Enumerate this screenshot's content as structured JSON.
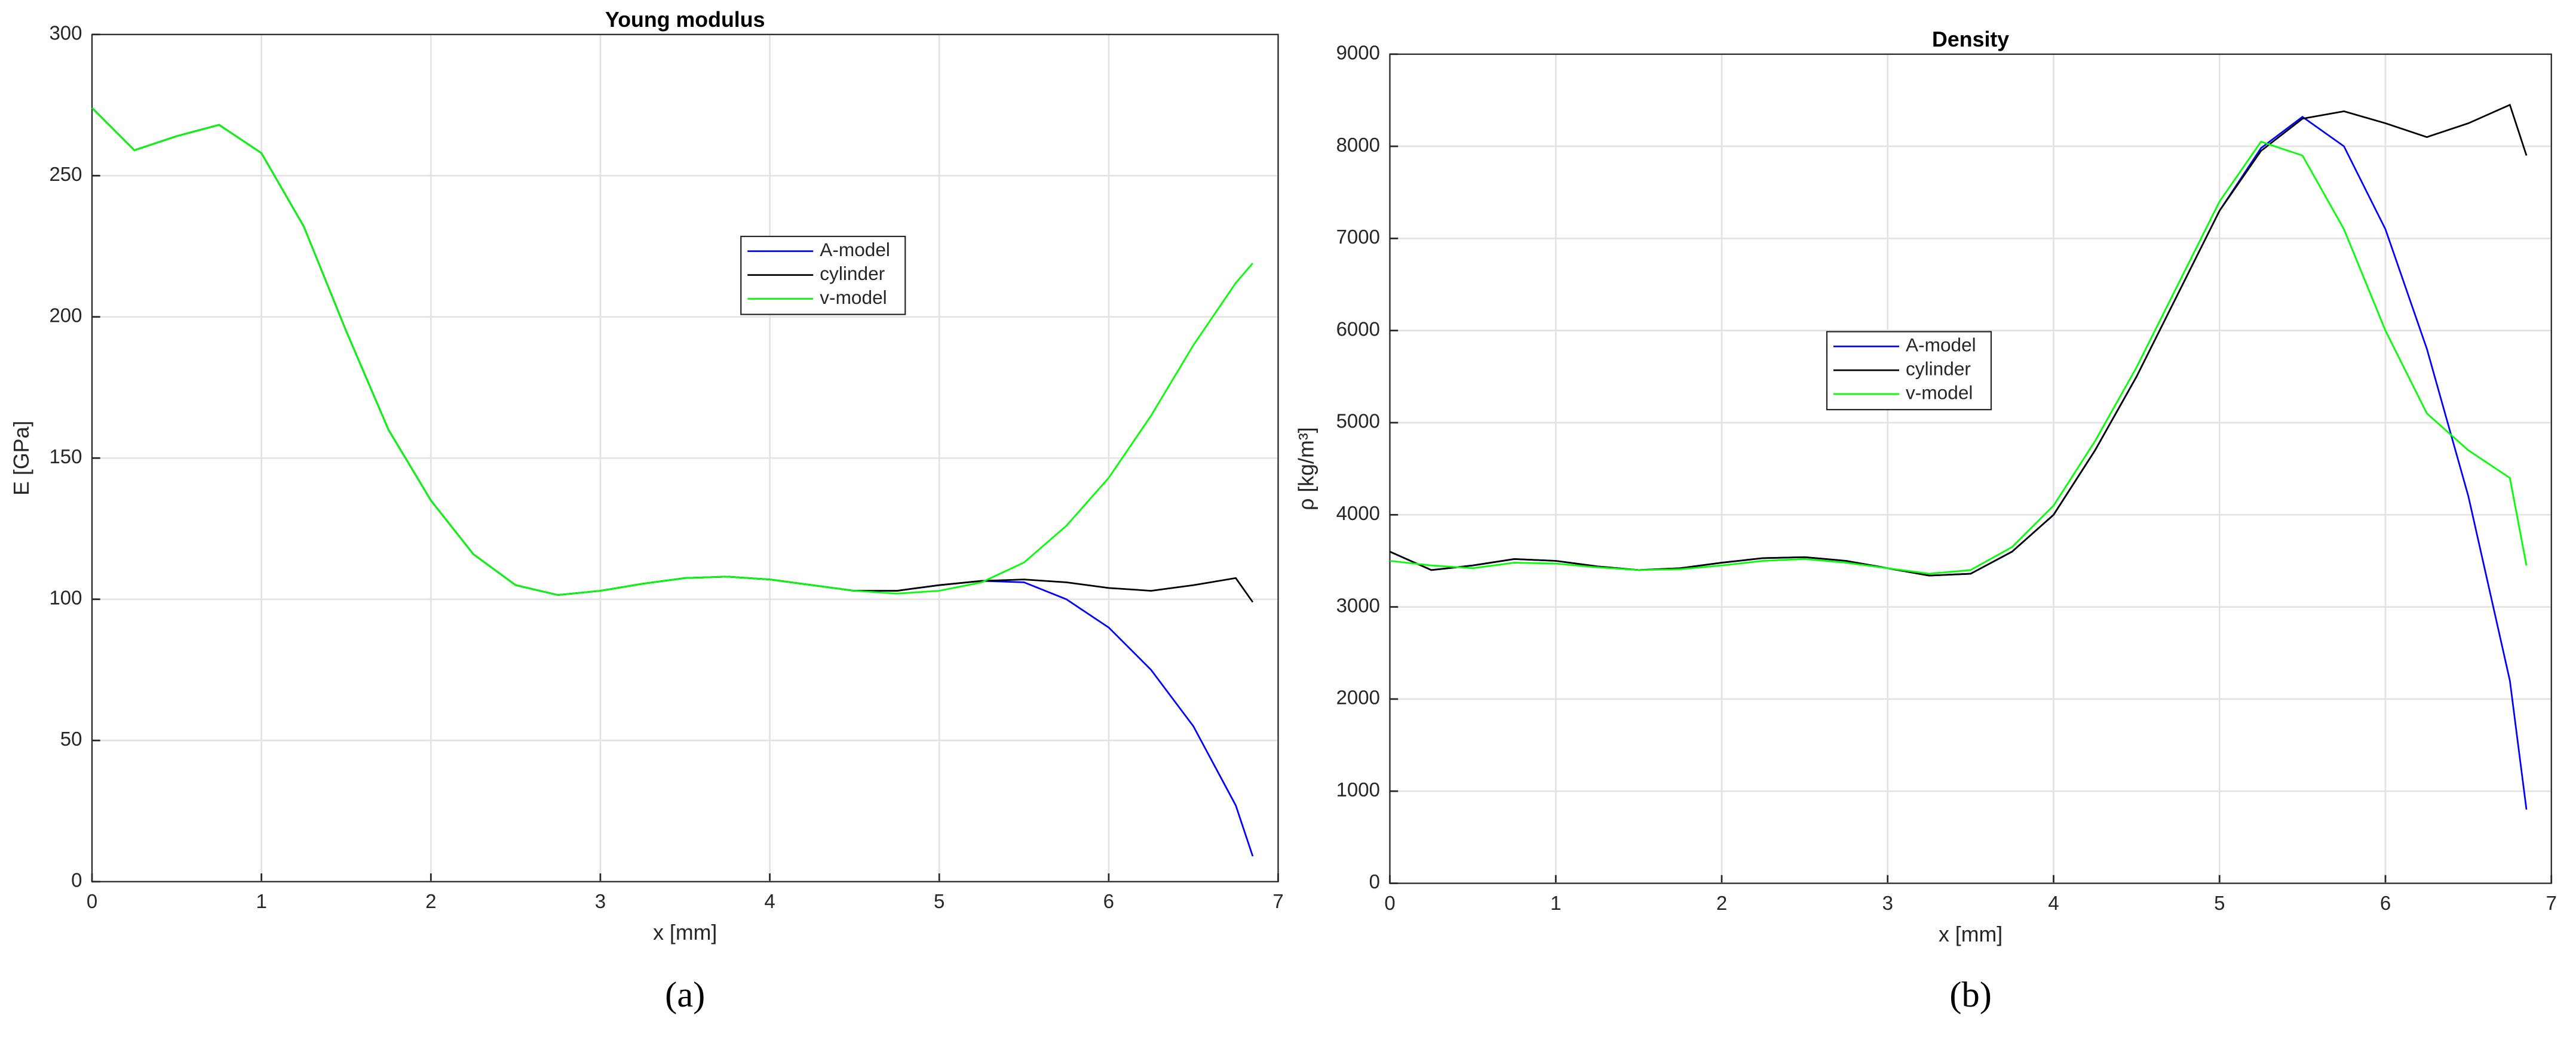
{
  "chart_data": [
    {
      "type": "line",
      "title": "Young modulus",
      "xlabel": "x [mm]",
      "ylabel": "E [GPa]",
      "caption": "(a)",
      "x": [
        0,
        0.25,
        0.5,
        0.75,
        1,
        1.25,
        1.5,
        1.75,
        2,
        2.25,
        2.5,
        2.75,
        3,
        3.25,
        3.5,
        3.75,
        4,
        4.25,
        4.5,
        4.75,
        5,
        5.25,
        5.5,
        5.75,
        6,
        6.25,
        6.5,
        6.75,
        6.85
      ],
      "series": [
        {
          "name": "A-model",
          "color": "#0000ff",
          "values": [
            274,
            259,
            264,
            268,
            258,
            232,
            195,
            160,
            135,
            116,
            105,
            101.5,
            103,
            105.5,
            107.5,
            108,
            107,
            105,
            103,
            103,
            105,
            106.5,
            106,
            100,
            90,
            75,
            55,
            27,
            9
          ]
        },
        {
          "name": "cylinder",
          "color": "#000000",
          "values": [
            274,
            259,
            264,
            268,
            258,
            232,
            195,
            160,
            135,
            116,
            105,
            101.5,
            103,
            105.5,
            107.5,
            108,
            107,
            105,
            103,
            103,
            105,
            106.5,
            107,
            106,
            104,
            103,
            105,
            107.5,
            99
          ]
        },
        {
          "name": "v-model",
          "color": "#00ff00",
          "values": [
            274,
            259,
            264,
            268,
            258,
            232,
            195,
            160,
            135,
            116,
            105,
            101.5,
            103,
            105.5,
            107.5,
            108,
            107,
            105,
            103,
            102,
            103,
            106,
            113,
            126,
            143,
            165,
            190,
            212,
            219
          ]
        }
      ],
      "xlim": [
        0,
        7
      ],
      "ylim": [
        0,
        300
      ],
      "xticks": [
        0,
        1,
        2,
        3,
        4,
        5,
        6,
        7
      ],
      "yticks": [
        0,
        50,
        100,
        150,
        200,
        250,
        300
      ],
      "grid": true
    },
    {
      "type": "line",
      "title": "Density",
      "xlabel": "x [mm]",
      "ylabel": "ρ [kg/m³]",
      "caption": "(b)",
      "x": [
        0,
        0.25,
        0.5,
        0.75,
        1,
        1.25,
        1.5,
        1.75,
        2,
        2.25,
        2.5,
        2.75,
        3,
        3.25,
        3.5,
        3.75,
        4,
        4.25,
        4.5,
        4.75,
        5,
        5.25,
        5.5,
        5.75,
        6,
        6.25,
        6.5,
        6.75,
        6.85
      ],
      "series": [
        {
          "name": "A-model",
          "color": "#0000ff",
          "values": [
            3600,
            3400,
            3450,
            3520,
            3500,
            3440,
            3400,
            3420,
            3480,
            3530,
            3540,
            3500,
            3420,
            3340,
            3360,
            3600,
            4000,
            4700,
            5500,
            6400,
            7300,
            7980,
            8320,
            8000,
            7100,
            5800,
            4200,
            2200,
            800
          ]
        },
        {
          "name": "cylinder",
          "color": "#000000",
          "values": [
            3600,
            3400,
            3450,
            3520,
            3500,
            3440,
            3400,
            3420,
            3480,
            3530,
            3540,
            3500,
            3420,
            3340,
            3360,
            3600,
            4000,
            4700,
            5500,
            6400,
            7300,
            7950,
            8300,
            8380,
            8250,
            8100,
            8250,
            8450,
            7900
          ]
        },
        {
          "name": "v-model",
          "color": "#00ff00",
          "values": [
            3500,
            3450,
            3420,
            3480,
            3470,
            3430,
            3400,
            3410,
            3450,
            3500,
            3520,
            3480,
            3420,
            3360,
            3400,
            3650,
            4100,
            4800,
            5600,
            6500,
            7400,
            8050,
            7900,
            7100,
            6000,
            5100,
            4700,
            4400,
            3450
          ]
        }
      ],
      "xlim": [
        0,
        7
      ],
      "ylim": [
        0,
        9000
      ],
      "xticks": [
        0,
        1,
        2,
        3,
        4,
        5,
        6,
        7
      ],
      "yticks": [
        0,
        1000,
        2000,
        3000,
        4000,
        5000,
        6000,
        7000,
        8000,
        9000
      ],
      "grid": true
    }
  ]
}
